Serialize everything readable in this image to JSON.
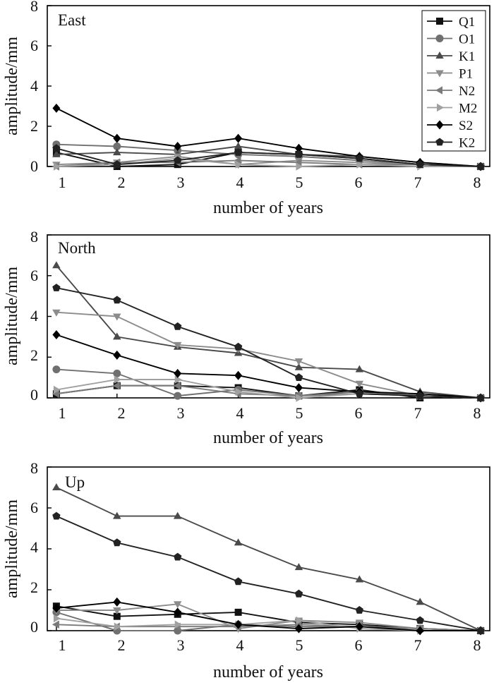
{
  "chart_data": [
    {
      "type": "line",
      "title": "East",
      "xlabel": "number of years",
      "ylabel": "amplitude/mm",
      "x": [
        1,
        2,
        3,
        4,
        5,
        6,
        7,
        8
      ],
      "xlim": [
        0.85,
        8.15
      ],
      "ylim": [
        0,
        8
      ],
      "xticks": [
        "1",
        "2",
        "3",
        "4",
        "5",
        "6",
        "7",
        "8"
      ],
      "yticks": [
        "0",
        "2",
        "4",
        "6",
        "8"
      ],
      "legend": "top-right",
      "series": [
        {
          "name": "Q1",
          "marker": "square",
          "color": "#111111",
          "values": [
            0.7,
            0.0,
            0.1,
            0.7,
            0.6,
            0.4,
            0.1,
            0.0
          ]
        },
        {
          "name": "O1",
          "marker": "circle",
          "color": "#707070",
          "values": [
            1.1,
            1.0,
            0.8,
            0.6,
            0.5,
            0.3,
            0.1,
            0.0
          ]
        },
        {
          "name": "K1",
          "marker": "triangle-up",
          "color": "#4a4a4a",
          "values": [
            0.6,
            0.7,
            0.6,
            1.0,
            0.6,
            0.5,
            0.2,
            0.0
          ]
        },
        {
          "name": "P1",
          "marker": "triangle-down",
          "color": "#8c8c8c",
          "values": [
            0.1,
            0.2,
            0.5,
            0.1,
            0.3,
            0.2,
            0.1,
            0.0
          ]
        },
        {
          "name": "N2",
          "marker": "triangle-left",
          "color": "#7a7a7a",
          "values": [
            0.0,
            0.2,
            0.2,
            0.3,
            0.2,
            0.1,
            0.1,
            0.0
          ]
        },
        {
          "name": "M2",
          "marker": "triangle-right",
          "color": "#a0a0a0",
          "values": [
            0.0,
            0.1,
            0.4,
            0.1,
            0.0,
            0.1,
            0.0,
            0.0
          ]
        },
        {
          "name": "S2",
          "marker": "diamond",
          "color": "#000000",
          "values": [
            2.9,
            1.4,
            1.0,
            1.4,
            0.9,
            0.5,
            0.2,
            0.0
          ]
        },
        {
          "name": "K2",
          "marker": "pentagon",
          "color": "#222222",
          "values": [
            0.9,
            0.1,
            0.3,
            0.7,
            0.6,
            0.4,
            0.1,
            0.0
          ]
        }
      ]
    },
    {
      "type": "line",
      "title": "North",
      "xlabel": "number of years",
      "ylabel": "amplitude/mm",
      "x": [
        1,
        2,
        3,
        4,
        5,
        6,
        7,
        8
      ],
      "xlim": [
        0.85,
        8.15
      ],
      "ylim": [
        0,
        8
      ],
      "xticks": [
        "1",
        "2",
        "3",
        "4",
        "5",
        "6",
        "7",
        "8"
      ],
      "yticks": [
        "0",
        "2",
        "4",
        "6",
        "8"
      ],
      "series": [
        {
          "name": "Q1",
          "marker": "square",
          "color": "#111111",
          "values": [
            0.2,
            0.6,
            0.6,
            0.5,
            0.1,
            0.4,
            0.0,
            0.0
          ]
        },
        {
          "name": "O1",
          "marker": "circle",
          "color": "#707070",
          "values": [
            1.4,
            1.2,
            0.1,
            0.4,
            0.1,
            0.3,
            0.1,
            0.0
          ]
        },
        {
          "name": "K1",
          "marker": "triangle-up",
          "color": "#4a4a4a",
          "values": [
            6.5,
            3.0,
            2.5,
            2.2,
            1.5,
            1.4,
            0.3,
            0.0
          ]
        },
        {
          "name": "P1",
          "marker": "triangle-down",
          "color": "#8c8c8c",
          "values": [
            4.2,
            4.0,
            2.6,
            2.4,
            1.8,
            0.7,
            0.1,
            0.0
          ]
        },
        {
          "name": "N2",
          "marker": "triangle-left",
          "color": "#7a7a7a",
          "values": [
            0.2,
            0.6,
            0.6,
            0.2,
            0.1,
            0.2,
            0.1,
            0.0
          ]
        },
        {
          "name": "M2",
          "marker": "triangle-right",
          "color": "#a0a0a0",
          "values": [
            0.4,
            0.9,
            0.9,
            0.3,
            0.0,
            0.2,
            0.1,
            0.0
          ]
        },
        {
          "name": "S2",
          "marker": "diamond",
          "color": "#000000",
          "values": [
            3.1,
            2.1,
            1.2,
            1.1,
            0.5,
            0.3,
            0.2,
            0.0
          ]
        },
        {
          "name": "K2",
          "marker": "pentagon",
          "color": "#222222",
          "values": [
            5.4,
            4.8,
            3.5,
            2.5,
            1.0,
            0.2,
            0.1,
            0.0
          ]
        }
      ]
    },
    {
      "type": "line",
      "title": "Up",
      "xlabel": "number of years",
      "ylabel": "amplitude/mm",
      "x": [
        1,
        2,
        3,
        4,
        5,
        6,
        7,
        8
      ],
      "xlim": [
        0.85,
        8.15
      ],
      "ylim": [
        0,
        8
      ],
      "xticks": [
        "1",
        "2",
        "3",
        "4",
        "5",
        "6",
        "7",
        "8"
      ],
      "yticks": [
        "0",
        "2",
        "4",
        "6",
        "8"
      ],
      "series": [
        {
          "name": "Q1",
          "marker": "square",
          "color": "#111111",
          "values": [
            1.2,
            0.7,
            0.8,
            0.9,
            0.4,
            0.3,
            0.1,
            0.0
          ]
        },
        {
          "name": "O1",
          "marker": "circle",
          "color": "#707070",
          "values": [
            0.9,
            0.0,
            0.0,
            0.3,
            0.2,
            0.2,
            0.1,
            0.0
          ]
        },
        {
          "name": "K1",
          "marker": "triangle-up",
          "color": "#4a4a4a",
          "values": [
            7.0,
            5.6,
            5.6,
            4.3,
            3.1,
            2.5,
            1.4,
            0.0
          ]
        },
        {
          "name": "P1",
          "marker": "triangle-down",
          "color": "#8c8c8c",
          "values": [
            1.0,
            1.0,
            1.3,
            0.1,
            0.5,
            0.4,
            0.1,
            0.0
          ]
        },
        {
          "name": "N2",
          "marker": "triangle-left",
          "color": "#7a7a7a",
          "values": [
            0.3,
            0.2,
            0.2,
            0.2,
            0.3,
            0.2,
            0.1,
            0.0
          ]
        },
        {
          "name": "M2",
          "marker": "triangle-right",
          "color": "#a0a0a0",
          "values": [
            0.6,
            0.2,
            0.3,
            0.3,
            0.5,
            0.1,
            0.0,
            0.0
          ]
        },
        {
          "name": "S2",
          "marker": "diamond",
          "color": "#000000",
          "values": [
            1.1,
            1.4,
            0.9,
            0.3,
            0.1,
            0.2,
            0.0,
            0.0
          ]
        },
        {
          "name": "K2",
          "marker": "pentagon",
          "color": "#222222",
          "values": [
            5.6,
            4.3,
            3.6,
            2.4,
            1.8,
            1.0,
            0.5,
            0.0
          ]
        }
      ]
    }
  ]
}
